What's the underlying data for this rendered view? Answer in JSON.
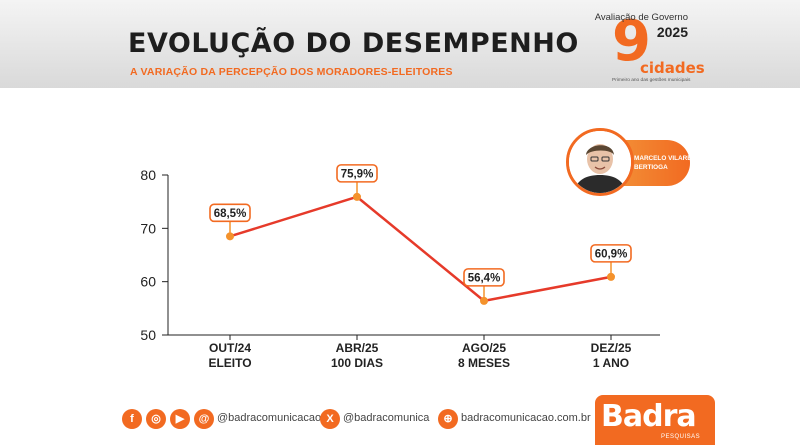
{
  "header": {
    "title": "EVOLUÇÃO DO DESEMPENHO",
    "subtitle": "A VARIAÇÃO DA PERCEPÇÃO DOS MORADORES-ELEITORES"
  },
  "badge": {
    "top_text": "Avaliação de Governo",
    "year": "2025",
    "number": "9",
    "word": "cidades",
    "sub_text": "Primeiro ano das gestões municipais"
  },
  "candidate": {
    "name": "MARCELO VILARES",
    "city": "BERTIOGA"
  },
  "chart_data": {
    "type": "line",
    "categories": [
      [
        "OUT/24",
        "ELEITO"
      ],
      [
        "ABR/25",
        "100 DIAS"
      ],
      [
        "AGO/25",
        "8 MESES"
      ],
      [
        "DEZ/25",
        "1 ANO"
      ]
    ],
    "values": [
      68.5,
      75.9,
      56.4,
      60.9
    ],
    "value_labels": [
      "68,5%",
      "75,9%",
      "56,4%",
      "60,9%"
    ],
    "yticks": [
      "80",
      "70",
      "60",
      "50"
    ],
    "ylim": [
      50,
      80
    ],
    "grid": false,
    "line_color": "#e63a2a",
    "point_color": "#f4922c"
  },
  "footer": {
    "social_handle": "@badracomunicacao",
    "x_handle": "@badracomunica",
    "website": "badracomunicacao.com.br",
    "brand": "Badra",
    "brand_sub": "PESQUISAS"
  },
  "colors": {
    "accent": "#f26a21"
  }
}
